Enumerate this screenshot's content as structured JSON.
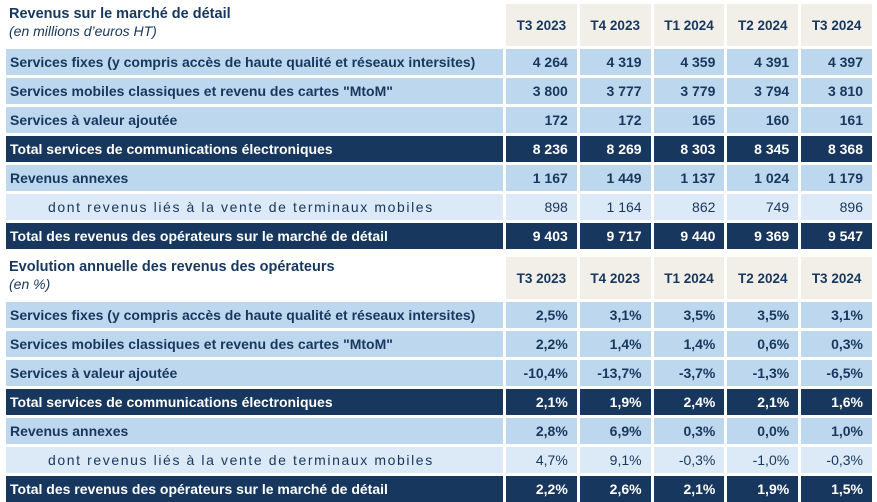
{
  "colors": {
    "dark_navy": "#17375E",
    "light_blue_row": "#BDD7EE",
    "pale_blue_row": "#DCE9F7",
    "header_beige": "#F2EFE9",
    "total_row_text": "#FFFFFF",
    "text_navy": "#17375E"
  },
  "table1": {
    "title": "Revenus sur le marché de détail",
    "subtitle": "(en millions d’euros HT)",
    "columns": [
      "T3 2023",
      "T4 2023",
      "T1 2024",
      "T2 2024",
      "T3 2024"
    ],
    "rows": [
      {
        "label": "Services fixes (y compris accès de haute qualité et réseaux intersites)",
        "style": "normal",
        "values": [
          "4 264",
          "4 319",
          "4 359",
          "4 391",
          "4 397"
        ]
      },
      {
        "label": "Services mobiles classiques et revenu des cartes \"MtoM\"",
        "style": "normal",
        "values": [
          "3 800",
          "3 777",
          "3 779",
          "3 794",
          "3 810"
        ]
      },
      {
        "label": "Services à valeur ajoutée",
        "style": "normal",
        "values": [
          "172",
          "172",
          "165",
          "160",
          "161"
        ]
      },
      {
        "label": "Total services de communications électroniques",
        "style": "total",
        "values": [
          "8 236",
          "8 269",
          "8 303",
          "8 345",
          "8 368"
        ]
      },
      {
        "label": "Revenus annexes",
        "style": "normal",
        "values": [
          "1 167",
          "1 449",
          "1 137",
          "1 024",
          "1 179"
        ]
      },
      {
        "label": "dont revenus liés à la vente de terminaux mobiles",
        "style": "sub",
        "values": [
          "898",
          "1 164",
          "862",
          "749",
          "896"
        ]
      },
      {
        "label": "Total des revenus des opérateurs sur le marché de détail",
        "style": "total",
        "values": [
          "9 403",
          "9 717",
          "9 440",
          "9 369",
          "9 547"
        ]
      }
    ]
  },
  "table2": {
    "title": "Evolution annuelle des revenus des opérateurs",
    "subtitle": "(en %)",
    "columns": [
      "T3 2023",
      "T4 2023",
      "T1 2024",
      "T2 2024",
      "T3 2024"
    ],
    "rows": [
      {
        "label": "Services fixes (y compris accès de haute qualité et réseaux intersites)",
        "style": "normal",
        "values": [
          "2,5%",
          "3,1%",
          "3,5%",
          "3,5%",
          "3,1%"
        ]
      },
      {
        "label": "Services mobiles classiques et revenu des cartes \"MtoM\"",
        "style": "normal",
        "values": [
          "2,2%",
          "1,4%",
          "1,4%",
          "0,6%",
          "0,3%"
        ]
      },
      {
        "label": "Services à valeur ajoutée",
        "style": "normal",
        "values": [
          "-10,4%",
          "-13,7%",
          "-3,7%",
          "-1,3%",
          "-6,5%"
        ]
      },
      {
        "label": "Total services de communications électroniques",
        "style": "total",
        "values": [
          "2,1%",
          "1,9%",
          "2,4%",
          "2,1%",
          "1,6%"
        ]
      },
      {
        "label": "Revenus annexes",
        "style": "normal",
        "values": [
          "2,8%",
          "6,9%",
          "0,3%",
          "0,0%",
          "1,0%"
        ]
      },
      {
        "label": "dont revenus liés à la vente de terminaux mobiles",
        "style": "sub",
        "values": [
          "4,7%",
          "9,1%",
          "-0,3%",
          "-1,0%",
          "-0,3%"
        ]
      },
      {
        "label": "Total des revenus des opérateurs sur le marché de détail",
        "style": "total",
        "values": [
          "2,2%",
          "2,6%",
          "2,1%",
          "1,9%",
          "1,5%"
        ]
      }
    ]
  }
}
